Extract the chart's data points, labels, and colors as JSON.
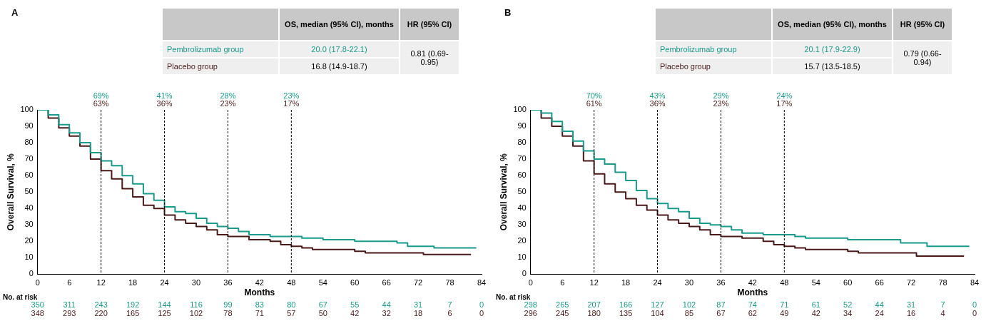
{
  "chart_data": [
    {
      "type": "step",
      "title": "A",
      "xlabel": "Months",
      "ylabel": "Overall Survival, %",
      "xlim": [
        0,
        84
      ],
      "xticks": [
        0,
        6,
        12,
        18,
        24,
        30,
        36,
        42,
        48,
        54,
        60,
        66,
        72,
        78,
        84
      ],
      "ylim": [
        0,
        100
      ],
      "yticks": [
        0,
        10,
        20,
        30,
        40,
        50,
        60,
        70,
        80,
        90,
        100
      ],
      "grid": false,
      "legend": "top",
      "marker": "none",
      "series": [
        {
          "name": "Pembrolizumab group",
          "color": "#1a9a8a",
          "x": [
            0,
            2,
            4,
            6,
            8,
            10,
            12,
            14,
            16,
            18,
            20,
            22,
            24,
            26,
            28,
            30,
            32,
            34,
            36,
            38,
            40,
            44,
            48,
            50,
            54,
            58,
            60,
            66,
            68,
            70,
            74,
            75,
            83
          ],
          "values": [
            100,
            97,
            91,
            86,
            80,
            74,
            69,
            66,
            60,
            55,
            49,
            45,
            41,
            38,
            37,
            34,
            31,
            29,
            28,
            26,
            24,
            23,
            23,
            22,
            21,
            21,
            20,
            20,
            19,
            17,
            17,
            16,
            16
          ]
        },
        {
          "name": "Placebo group",
          "color": "#4a1a1a",
          "x": [
            0,
            2,
            4,
            6,
            8,
            10,
            12,
            14,
            16,
            18,
            20,
            22,
            24,
            26,
            28,
            30,
            32,
            34,
            36,
            40,
            44,
            46,
            48,
            50,
            52,
            58,
            60,
            62,
            72,
            73,
            82
          ],
          "values": [
            100,
            95,
            89,
            84,
            78,
            70,
            63,
            58,
            52,
            47,
            42,
            40,
            36,
            33,
            31,
            29,
            27,
            24,
            23,
            21,
            20,
            18,
            17,
            16,
            15,
            15,
            14,
            13,
            13,
            12,
            12
          ]
        }
      ],
      "ref_lines": [
        {
          "axis": "x",
          "value": 12,
          "label": null,
          "color": "#000000",
          "line_style": "dashed"
        },
        {
          "axis": "x",
          "value": 24,
          "label": null,
          "color": "#000000",
          "line_style": "dashed"
        },
        {
          "axis": "x",
          "value": 36,
          "label": null,
          "color": "#000000",
          "line_style": "dashed"
        },
        {
          "axis": "x",
          "value": 48,
          "label": null,
          "color": "#000000",
          "line_style": "dashed"
        }
      ],
      "annotations": [
        "OS, median (95% CI), months",
        "HR (95% CI)",
        "20.0 (17.8-22.1)",
        "16.8 (14.9-18.7)",
        "0.81 (0.69-0.95)",
        "No. at risk",
        "350",
        "311",
        "243",
        "192",
        "144",
        "116",
        "99",
        "83",
        "80",
        "67",
        "55",
        "44",
        "31",
        "7",
        "0",
        "348",
        "293",
        "220",
        "165",
        "125",
        "102",
        "78",
        "71",
        "57",
        "50",
        "42",
        "32",
        "18",
        "6",
        "0",
        "69%",
        "63%",
        "41%",
        "36%",
        "28%",
        "23%",
        "23%",
        "17%"
      ]
    },
    {
      "type": "step",
      "title": "B",
      "xlabel": "Months",
      "ylabel": "Overall Survival, %",
      "xlim": [
        0,
        84
      ],
      "xticks": [
        0,
        6,
        12,
        18,
        24,
        30,
        36,
        42,
        48,
        54,
        60,
        66,
        72,
        78,
        84
      ],
      "ylim": [
        0,
        100
      ],
      "yticks": [
        0,
        10,
        20,
        30,
        40,
        50,
        60,
        70,
        80,
        90,
        100
      ],
      "grid": false,
      "legend": "top",
      "marker": "none",
      "series": [
        {
          "name": "Pembrolizumab group",
          "color": "#1a9a8a",
          "x": [
            0,
            2,
            4,
            6,
            8,
            10,
            12,
            14,
            16,
            18,
            20,
            22,
            24,
            26,
            28,
            30,
            32,
            34,
            36,
            38,
            40,
            44,
            48,
            50,
            52,
            60,
            68,
            70,
            74,
            75,
            83
          ],
          "values": [
            100,
            98,
            93,
            87,
            81,
            75,
            70,
            67,
            62,
            57,
            51,
            46,
            43,
            40,
            38,
            34,
            31,
            30,
            29,
            27,
            25,
            24,
            24,
            23,
            22,
            21,
            21,
            19,
            19,
            17,
            17
          ]
        },
        {
          "name": "Placebo group",
          "color": "#4a1a1a",
          "x": [
            0,
            2,
            4,
            6,
            8,
            10,
            12,
            14,
            16,
            18,
            20,
            22,
            24,
            26,
            28,
            30,
            32,
            34,
            36,
            40,
            44,
            46,
            48,
            50,
            52,
            58,
            60,
            62,
            72,
            73,
            82
          ],
          "values": [
            100,
            95,
            90,
            84,
            78,
            69,
            61,
            55,
            50,
            46,
            42,
            39,
            36,
            33,
            31,
            29,
            27,
            24,
            23,
            22,
            20,
            18,
            17,
            16,
            15,
            15,
            14,
            13,
            13,
            11,
            11
          ]
        }
      ],
      "ref_lines": [
        {
          "axis": "x",
          "value": 12,
          "label": null,
          "color": "#000000",
          "line_style": "dashed"
        },
        {
          "axis": "x",
          "value": 24,
          "label": null,
          "color": "#000000",
          "line_style": "dashed"
        },
        {
          "axis": "x",
          "value": 36,
          "label": null,
          "color": "#000000",
          "line_style": "dashed"
        },
        {
          "axis": "x",
          "value": 48,
          "label": null,
          "color": "#000000",
          "line_style": "dashed"
        }
      ],
      "annotations": [
        "OS, median (95% CI), months",
        "HR (95% CI)",
        "20.1 (17.9-22.9)",
        "15.7 (13.5-18.5)",
        "0.79 (0.66-0.94)",
        "No. at risk",
        "298",
        "265",
        "207",
        "166",
        "127",
        "102",
        "87",
        "74",
        "71",
        "61",
        "52",
        "44",
        "31",
        "7",
        "0",
        "296",
        "245",
        "180",
        "135",
        "104",
        "85",
        "67",
        "62",
        "49",
        "42",
        "34",
        "24",
        "16",
        "4",
        "0",
        "70%",
        "61%",
        "43%",
        "36%",
        "29%",
        "23%",
        "24%",
        "17%"
      ]
    }
  ]
}
